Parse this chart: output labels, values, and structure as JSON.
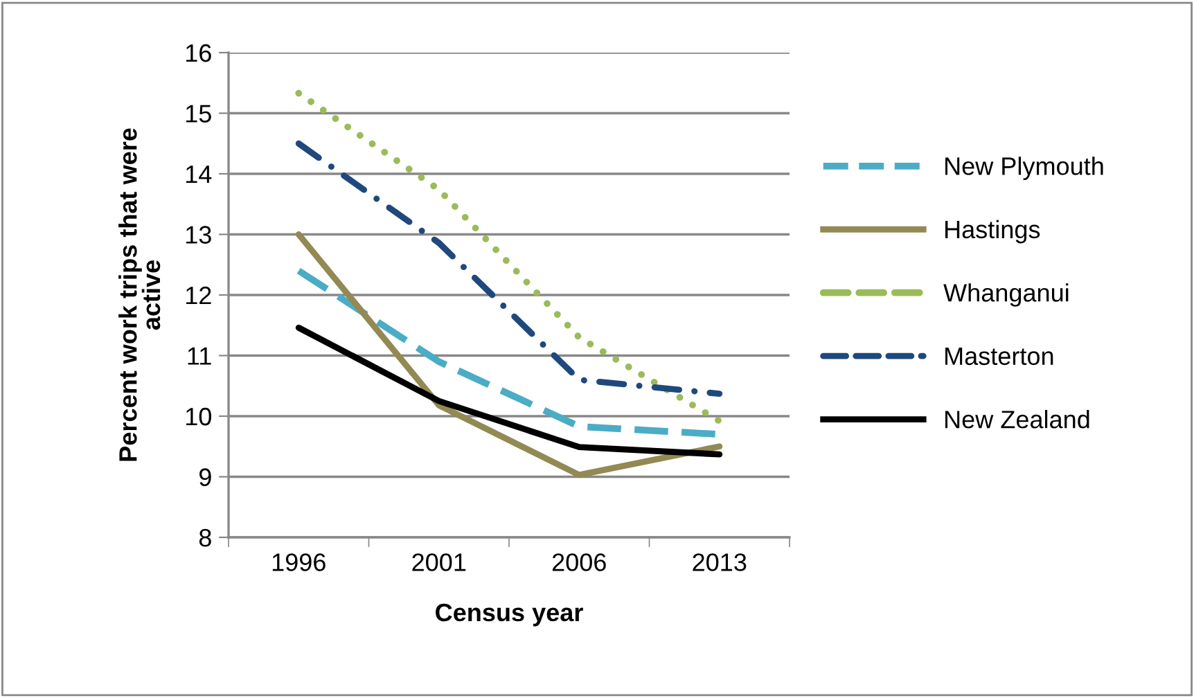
{
  "chart_data": {
    "type": "line",
    "xlabel": "Census year",
    "ylabel": "Percent work trips that were active",
    "categories": [
      "1996",
      "2001",
      "2006",
      "2013"
    ],
    "ylim": [
      8,
      16
    ],
    "yticks": [
      8,
      9,
      10,
      11,
      12,
      13,
      14,
      15,
      16
    ],
    "grid": "y",
    "legend": "right",
    "marker": "none",
    "series": [
      {
        "name": "New Plymouth",
        "color": "#4bacc6",
        "line_style": "dashed",
        "values": [
          12.4,
          10.9,
          9.83,
          9.7
        ]
      },
      {
        "name": "Hastings",
        "color": "#938953",
        "line_style": "solid",
        "values": [
          13.0,
          10.18,
          9.03,
          9.5
        ]
      },
      {
        "name": "Whanganui",
        "color": "#9bbb59",
        "line_style": "dotted",
        "values": [
          15.33,
          13.74,
          11.3,
          9.92
        ]
      },
      {
        "name": "Masterton",
        "color": "#1f497d",
        "line_style": "dashdot",
        "values": [
          14.5,
          12.86,
          10.6,
          10.37
        ]
      },
      {
        "name": "New Zealand",
        "color": "#000000",
        "line_style": "solid",
        "values": [
          11.46,
          10.25,
          9.49,
          9.37
        ]
      }
    ]
  }
}
